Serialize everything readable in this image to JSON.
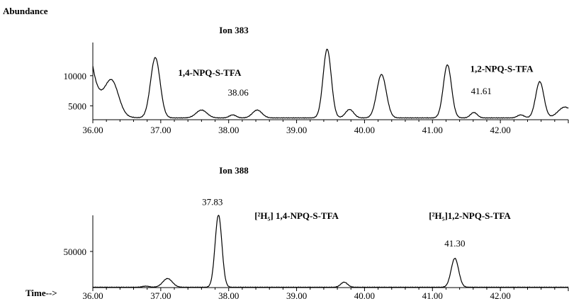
{
  "chart_data": [
    {
      "type": "line",
      "title": "Ion 383",
      "ylabel": "Abundance",
      "xlim": [
        36.0,
        43.0
      ],
      "ylim": [
        2700,
        15500
      ],
      "x_ticks": [
        {
          "v": 36.0,
          "label": "36.00"
        },
        {
          "v": 37.0,
          "label": "37.00"
        },
        {
          "v": 38.0,
          "label": "38.00"
        },
        {
          "v": 39.0,
          "label": "39.00"
        },
        {
          "v": 40.0,
          "label": "40.00"
        },
        {
          "v": 41.0,
          "label": "41.00"
        },
        {
          "v": 42.0,
          "label": "42.00"
        }
      ],
      "y_ticks": [
        {
          "v": 10000,
          "label": "10000"
        },
        {
          "v": 5000,
          "label": "5000"
        }
      ],
      "baseline": 3000,
      "peaks": [
        {
          "x": 36.28,
          "h": 5500,
          "w": 0.1
        },
        {
          "x": 36.92,
          "h": 10000,
          "w": 0.07
        },
        {
          "x": 37.6,
          "h": 1300,
          "w": 0.08
        },
        {
          "x": 38.06,
          "h": 500,
          "w": 0.05
        },
        {
          "x": 38.42,
          "h": 1300,
          "w": 0.07
        },
        {
          "x": 39.45,
          "h": 11400,
          "w": 0.06
        },
        {
          "x": 39.78,
          "h": 1400,
          "w": 0.06
        },
        {
          "x": 40.25,
          "h": 7200,
          "w": 0.07
        },
        {
          "x": 41.22,
          "h": 8800,
          "w": 0.06
        },
        {
          "x": 41.61,
          "h": 900,
          "w": 0.05
        },
        {
          "x": 42.3,
          "h": 500,
          "w": 0.05
        },
        {
          "x": 42.58,
          "h": 6000,
          "w": 0.06
        },
        {
          "x": 42.95,
          "h": 1800,
          "w": 0.1
        }
      ],
      "start": {
        "x": 36.0,
        "y": 11500,
        "decay": 0.12
      },
      "annotations": [
        {
          "text": "1,4-NPQ-S-TFA",
          "x": 37.72,
          "y": 10000,
          "bold": true
        },
        {
          "text": "38.06",
          "x": 38.14,
          "y": 6700,
          "bold": false
        },
        {
          "text": "1,2-NPQ-S-TFA",
          "x": 42.02,
          "y": 10600,
          "bold": true
        },
        {
          "text": "41.61",
          "x": 41.72,
          "y": 6900,
          "bold": false
        }
      ]
    },
    {
      "type": "line",
      "title": "Ion 388",
      "xlabel": "Time-->",
      "xlim": [
        36.0,
        43.0
      ],
      "ylim": [
        0,
        100000
      ],
      "x_ticks": [
        {
          "v": 36.0,
          "label": "36.00"
        },
        {
          "v": 37.0,
          "label": "37.00"
        },
        {
          "v": 38.0,
          "label": "38.00"
        },
        {
          "v": 39.0,
          "label": "39.00"
        },
        {
          "v": 40.0,
          "label": "40.00"
        },
        {
          "v": 41.0,
          "label": "41.00"
        },
        {
          "v": 42.0,
          "label": "42.00"
        }
      ],
      "y_ticks": [
        {
          "v": 50000,
          "label": "50000"
        }
      ],
      "baseline": 500,
      "peaks": [
        {
          "x": 36.78,
          "h": 1500,
          "w": 0.05
        },
        {
          "x": 37.1,
          "h": 12000,
          "w": 0.07
        },
        {
          "x": 37.85,
          "h": 100000,
          "w": 0.05
        },
        {
          "x": 39.7,
          "h": 7000,
          "w": 0.05
        },
        {
          "x": 41.33,
          "h": 40000,
          "w": 0.055
        }
      ],
      "annotations": [
        {
          "text": "37.83",
          "x": 37.76,
          "y": 114000,
          "bold": false
        },
        {
          "text": "[²H₅] 1,4-NPQ-S-TFA",
          "x": 39.0,
          "y": 95000,
          "bold": true
        },
        {
          "text": "[²H₅]1,2-NPQ-S-TFA",
          "x": 41.55,
          "y": 95000,
          "bold": true
        },
        {
          "text": "41.30",
          "x": 41.33,
          "y": 57000,
          "bold": false
        }
      ]
    }
  ]
}
